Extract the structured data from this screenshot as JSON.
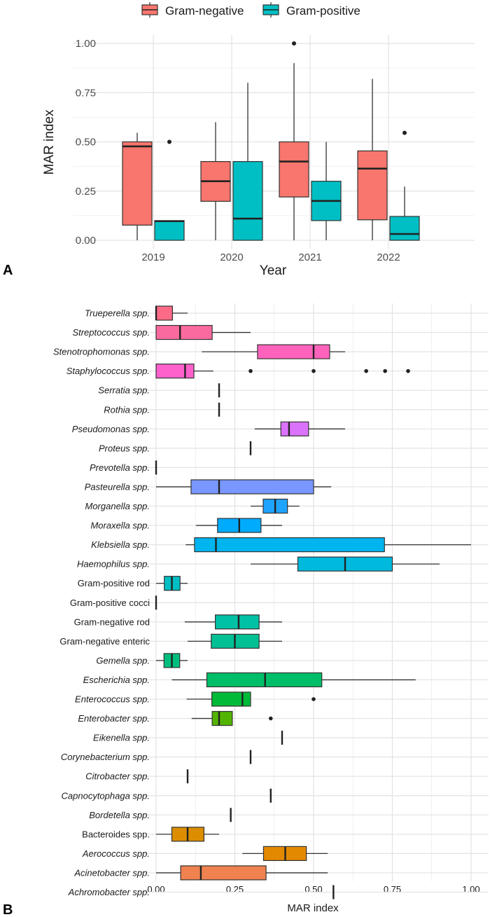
{
  "chart_data": [
    {
      "type": "boxplot",
      "panel_label": "A",
      "xlabel": "Year",
      "ylabel": "MAR index",
      "ylim": [
        0,
        1
      ],
      "yticks": [
        "0.00",
        "0.25",
        "0.50",
        "0.75",
        "1.00"
      ],
      "categories": [
        "2019",
        "2020",
        "2021",
        "2022"
      ],
      "legend": {
        "placement": "top",
        "entries": [
          "Gram-negative",
          "Gram-positive"
        ]
      },
      "grid": true,
      "series": [
        {
          "name": "Gram-negative",
          "color": "#F8766D",
          "boxes": [
            {
              "lw": 0,
              "q1": 0.077,
              "med": 0.477,
              "q3": 0.5,
              "uw": 0.546,
              "out": []
            },
            {
              "lw": 0,
              "q1": 0.198,
              "med": 0.3,
              "q3": 0.4,
              "uw": 0.6,
              "out": []
            },
            {
              "lw": 0,
              "q1": 0.22,
              "med": 0.4,
              "q3": 0.5,
              "uw": 0.9,
              "out": [
                1.0
              ]
            },
            {
              "lw": 0,
              "q1": 0.104,
              "med": 0.364,
              "q3": 0.454,
              "uw": 0.82,
              "out": []
            }
          ]
        },
        {
          "name": "Gram-positive",
          "color": "#00BFC4",
          "boxes": [
            {
              "lw": 0,
              "q1": 0,
              "med": 0.097,
              "q3": 0.1,
              "uw": 0.1,
              "out": [
                0.5
              ]
            },
            {
              "lw": 0,
              "q1": 0,
              "med": 0.11,
              "q3": 0.4,
              "uw": 0.8,
              "out": []
            },
            {
              "lw": 0,
              "q1": 0.1,
              "med": 0.2,
              "q3": 0.3,
              "uw": 0.5,
              "out": []
            },
            {
              "lw": 0,
              "q1": 0,
              "med": 0.032,
              "q3": 0.121,
              "uw": 0.273,
              "out": [
                0.546
              ]
            }
          ]
        }
      ]
    },
    {
      "type": "boxplot",
      "orientation": "horizontal",
      "panel_label": "B",
      "xlabel": "MAR index",
      "xlim": [
        0,
        1
      ],
      "xticks": [
        "0.00",
        "0.25",
        "0.50",
        "0.75",
        "1.00"
      ],
      "grid": true,
      "rows": [
        {
          "label": "Trueperella spp.",
          "italic": true,
          "color": "#FB6A87",
          "lw": 0,
          "q1": 0,
          "med": 0,
          "q3": 0.052,
          "uw": 0.1,
          "out": []
        },
        {
          "label": "Streptococcus spp.",
          "italic": true,
          "color": "#FA6A9E",
          "lw": 0,
          "q1": 0,
          "med": 0.076,
          "q3": 0.178,
          "uw": 0.3,
          "out": []
        },
        {
          "label": "Stenotrophomonas spp.",
          "italic": true,
          "color": "#FF62BC",
          "lw": 0.145,
          "q1": 0.322,
          "med": 0.5,
          "q3": 0.551,
          "uw": 0.6,
          "out": []
        },
        {
          "label": "Staphylococcus spp.",
          "italic": true,
          "color": "#FF61CC",
          "lw": 0,
          "q1": 0,
          "med": 0.092,
          "q3": 0.12,
          "uw": 0.182,
          "out": [
            0.3,
            0.5,
            0.667,
            0.727,
            0.8
          ]
        },
        {
          "label": "Serratia spp.",
          "italic": true,
          "color": "#F564E3",
          "lw": 0.2,
          "q1": 0.2,
          "med": 0.2,
          "q3": 0.2,
          "uw": 0.2,
          "out": []
        },
        {
          "label": "Rothia spp.",
          "italic": true,
          "color": "#E76BF3",
          "lw": 0.2,
          "q1": 0.2,
          "med": 0.2,
          "q3": 0.2,
          "uw": 0.2,
          "out": []
        },
        {
          "label": "Pseudomonas spp.",
          "italic": true,
          "color": "#DB72FB",
          "lw": 0.313,
          "q1": 0.396,
          "med": 0.422,
          "q3": 0.484,
          "uw": 0.6,
          "out": []
        },
        {
          "label": "Proteus spp.",
          "italic": true,
          "color": "#C77CFF",
          "lw": 0.3,
          "q1": 0.3,
          "med": 0.3,
          "q3": 0.3,
          "uw": 0.3,
          "out": []
        },
        {
          "label": "Prevotella spp.",
          "italic": true,
          "color": "#A58AFF",
          "lw": 0,
          "q1": 0,
          "med": 0,
          "q3": 0,
          "uw": 0,
          "out": []
        },
        {
          "label": "Pasteurella spp.",
          "italic": true,
          "color": "#7997FF",
          "lw": 0,
          "q1": 0.111,
          "med": 0.2,
          "q3": 0.5,
          "uw": 0.556,
          "out": []
        },
        {
          "label": "Morganella spp.",
          "italic": true,
          "color": "#1EA4FF",
          "lw": 0.3,
          "q1": 0.34,
          "med": 0.378,
          "q3": 0.417,
          "uw": 0.455,
          "out": []
        },
        {
          "label": "Moraxella spp.",
          "italic": true,
          "color": "#00ABFD",
          "lw": 0.127,
          "q1": 0.195,
          "med": 0.264,
          "q3": 0.333,
          "uw": 0.4,
          "out": []
        },
        {
          "label": "Klebsiella spp.",
          "italic": true,
          "color": "#00B4EF",
          "lw": 0.094,
          "q1": 0.122,
          "med": 0.19,
          "q3": 0.725,
          "uw": 1.0,
          "out": []
        },
        {
          "label": "Haemophilus spp.",
          "italic": true,
          "color": "#00BADE",
          "lw": 0.3,
          "q1": 0.45,
          "med": 0.6,
          "q3": 0.75,
          "uw": 0.9,
          "out": []
        },
        {
          "label": "Gram-positive rod",
          "italic": false,
          "color": "#00BFC4",
          "lw": 0,
          "q1": 0.026,
          "med": 0.05,
          "q3": 0.076,
          "uw": 0.1,
          "out": []
        },
        {
          "label": "Gram-positive cocci",
          "italic": false,
          "color": "#00C1B2",
          "lw": 0,
          "q1": 0,
          "med": 0,
          "q3": 0,
          "uw": 0,
          "out": []
        },
        {
          "label": "Gram-negative rod",
          "italic": false,
          "color": "#00C1A5",
          "lw": 0.091,
          "q1": 0.188,
          "med": 0.262,
          "q3": 0.327,
          "uw": 0.4,
          "out": []
        },
        {
          "label": "Gram-negative enteric",
          "italic": false,
          "color": "#00C094",
          "lw": 0.1,
          "q1": 0.175,
          "med": 0.25,
          "q3": 0.327,
          "uw": 0.4,
          "out": []
        },
        {
          "label": "Gemella spp.",
          "italic": true,
          "color": "#00BF7D",
          "lw": 0,
          "q1": 0.025,
          "med": 0.05,
          "q3": 0.075,
          "uw": 0.1,
          "out": []
        },
        {
          "label": "Escherichia spp.",
          "italic": true,
          "color": "#00BE67",
          "lw": 0.05,
          "q1": 0.161,
          "med": 0.346,
          "q3": 0.526,
          "uw": 0.824,
          "out": []
        },
        {
          "label": "Enterococcus spp.",
          "italic": true,
          "color": "#00BA38",
          "lw": 0.097,
          "q1": 0.177,
          "med": 0.274,
          "q3": 0.3,
          "uw": 0.3,
          "out": [
            0.5
          ]
        },
        {
          "label": "Enterobacter spp.",
          "italic": true,
          "color": "#53B400",
          "lw": 0.113,
          "q1": 0.178,
          "med": 0.2,
          "q3": 0.242,
          "uw": 0.242,
          "out": [
            0.364
          ]
        },
        {
          "label": "Eikenella spp.",
          "italic": true,
          "color": "#7CAE00",
          "lw": 0.4,
          "q1": 0.4,
          "med": 0.4,
          "q3": 0.4,
          "uw": 0.4,
          "out": []
        },
        {
          "label": "Corynebacterium spp.",
          "italic": true,
          "color": "#9AA800",
          "lw": 0.3,
          "q1": 0.3,
          "med": 0.3,
          "q3": 0.3,
          "uw": 0.3,
          "out": []
        },
        {
          "label": "Citrobacter spp.",
          "italic": true,
          "color": "#B09C00",
          "lw": 0.1,
          "q1": 0.1,
          "med": 0.1,
          "q3": 0.1,
          "uw": 0.1,
          "out": []
        },
        {
          "label": "Capnocytophaga spp.",
          "italic": true,
          "color": "#C49A00",
          "lw": 0.364,
          "q1": 0.364,
          "med": 0.364,
          "q3": 0.364,
          "uw": 0.364,
          "out": []
        },
        {
          "label": "Bordetella spp.",
          "italic": true,
          "color": "#D39200",
          "lw": 0.237,
          "q1": 0.237,
          "med": 0.237,
          "q3": 0.237,
          "uw": 0.237,
          "out": []
        },
        {
          "label": "Bacteroides spp.",
          "italic": false,
          "color": "#DB8E00",
          "lw": 0,
          "q1": 0.05,
          "med": 0.1,
          "q3": 0.152,
          "uw": 0.2,
          "out": []
        },
        {
          "label": "Aerococcus spp.",
          "italic": true,
          "color": "#E38900",
          "lw": 0.274,
          "q1": 0.341,
          "med": 0.41,
          "q3": 0.477,
          "uw": 0.545,
          "out": []
        },
        {
          "label": "Acinetobacter spp.",
          "italic": true,
          "color": "#F0824F",
          "lw": 0,
          "q1": 0.078,
          "med": 0.142,
          "q3": 0.349,
          "uw": 0.545,
          "out": []
        },
        {
          "label": "Achromobacter spp.",
          "italic": true,
          "color": "#F8766D",
          "lw": 0.563,
          "q1": 0.563,
          "med": 0.563,
          "q3": 0.563,
          "uw": 0.563,
          "out": []
        }
      ]
    }
  ]
}
